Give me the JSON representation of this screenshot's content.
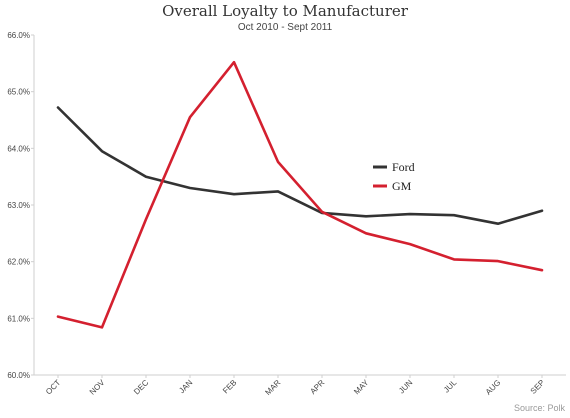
{
  "chart_data": {
    "type": "line",
    "title": "Overall Loyalty to Manufacturer",
    "subtitle": "Oct 2010 - Sept 2011",
    "categories": [
      "OCT",
      "NOV",
      "DEC",
      "JAN",
      "FEB",
      "MAR",
      "APR",
      "MAY",
      "JUN",
      "JUL",
      "AUG",
      "SEP"
    ],
    "ylim": [
      60.0,
      66.0
    ],
    "yticks": [
      "60.0%",
      "61.0%",
      "62.0%",
      "63.0%",
      "64.0%",
      "65.0%",
      "66.0%"
    ],
    "grid": false,
    "legend_position": "center-right",
    "series": [
      {
        "name": "Ford",
        "color": "#333333",
        "values": [
          64.72,
          63.95,
          63.5,
          63.3,
          63.19,
          63.24,
          62.86,
          62.8,
          62.84,
          62.82,
          62.67,
          62.9
        ]
      },
      {
        "name": "GM",
        "color": "#d4202f",
        "values": [
          61.03,
          60.84,
          62.75,
          64.55,
          65.52,
          63.76,
          62.88,
          62.5,
          62.31,
          62.04,
          62.01,
          61.85
        ]
      }
    ],
    "source": "Source: Polk"
  }
}
